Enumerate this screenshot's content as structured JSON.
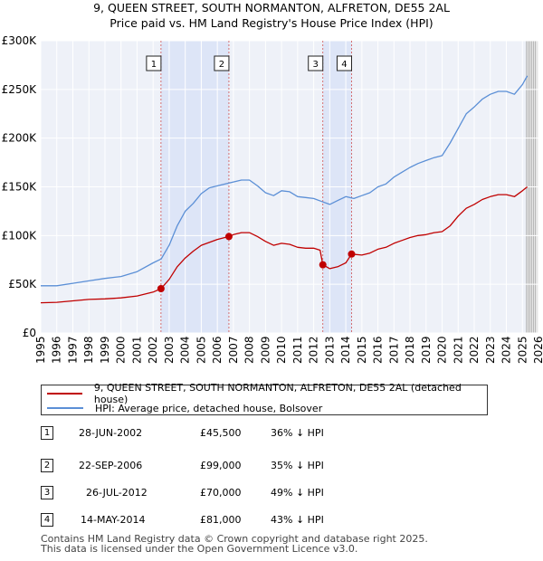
{
  "chart_data": {
    "type": "line",
    "title": "9, QUEEN STREET, SOUTH NORMANTON, ALFRETON, DE55 2AL",
    "subtitle": "Price paid vs. HM Land Registry's House Price Index (HPI)",
    "x_ticks": [
      "1995",
      "1996",
      "1997",
      "1998",
      "1999",
      "2000",
      "2001",
      "2002",
      "2003",
      "2004",
      "2005",
      "2006",
      "2007",
      "2008",
      "2009",
      "2010",
      "2011",
      "2012",
      "2013",
      "2014",
      "2015",
      "2016",
      "2017",
      "2018",
      "2019",
      "2020",
      "2021",
      "2022",
      "2023",
      "2024",
      "2025",
      "2026"
    ],
    "y_ticks": [
      "£0",
      "£50K",
      "£100K",
      "£150K",
      "£200K",
      "£250K",
      "£300K"
    ],
    "xlim": [
      1995,
      2026
    ],
    "ylim": [
      0,
      300000
    ],
    "series": [
      {
        "name": "HPI: Average price, detached house, Bolsover",
        "color": "#5b8fd6",
        "points": [
          [
            1995.0,
            48500
          ],
          [
            1996.0,
            48500
          ],
          [
            1997.0,
            51000
          ],
          [
            1998.0,
            53500
          ],
          [
            1999.0,
            56000
          ],
          [
            2000.0,
            58000
          ],
          [
            2001.0,
            63000
          ],
          [
            2002.0,
            72000
          ],
          [
            2002.5,
            76000
          ],
          [
            2003.0,
            90000
          ],
          [
            2003.5,
            110000
          ],
          [
            2004.0,
            125000
          ],
          [
            2004.5,
            133000
          ],
          [
            2005.0,
            143000
          ],
          [
            2005.5,
            149000
          ],
          [
            2006.0,
            151000
          ],
          [
            2006.5,
            153000
          ],
          [
            2007.0,
            155000
          ],
          [
            2007.5,
            157000
          ],
          [
            2008.0,
            157000
          ],
          [
            2008.5,
            151000
          ],
          [
            2009.0,
            144000
          ],
          [
            2009.5,
            141000
          ],
          [
            2010.0,
            146000
          ],
          [
            2010.5,
            145000
          ],
          [
            2011.0,
            140000
          ],
          [
            2011.5,
            139000
          ],
          [
            2012.0,
            138000
          ],
          [
            2012.5,
            135000
          ],
          [
            2013.0,
            132000
          ],
          [
            2013.5,
            136000
          ],
          [
            2014.0,
            140000
          ],
          [
            2014.5,
            138000
          ],
          [
            2015.0,
            141000
          ],
          [
            2015.5,
            144000
          ],
          [
            2016.0,
            150000
          ],
          [
            2016.5,
            153000
          ],
          [
            2017.0,
            160000
          ],
          [
            2017.5,
            165000
          ],
          [
            2018.0,
            170000
          ],
          [
            2018.5,
            174000
          ],
          [
            2019.0,
            177000
          ],
          [
            2019.5,
            180000
          ],
          [
            2020.0,
            182000
          ],
          [
            2020.5,
            195000
          ],
          [
            2021.0,
            210000
          ],
          [
            2021.5,
            225000
          ],
          [
            2022.0,
            232000
          ],
          [
            2022.5,
            240000
          ],
          [
            2023.0,
            245000
          ],
          [
            2023.5,
            248000
          ],
          [
            2024.0,
            248000
          ],
          [
            2024.5,
            245000
          ],
          [
            2025.0,
            255000
          ],
          [
            2025.3,
            264000
          ]
        ]
      },
      {
        "name": "9, QUEEN STREET, SOUTH NORMANTON, ALFRETON, DE55 2AL (detached house)",
        "color": "#c00000",
        "points": [
          [
            1995.0,
            31000
          ],
          [
            1996.0,
            31500
          ],
          [
            1997.0,
            33000
          ],
          [
            1998.0,
            34500
          ],
          [
            1999.0,
            35000
          ],
          [
            2000.0,
            36000
          ],
          [
            2001.0,
            38000
          ],
          [
            2002.0,
            42000
          ],
          [
            2002.49,
            45500
          ],
          [
            2003.0,
            55000
          ],
          [
            2003.5,
            68000
          ],
          [
            2004.0,
            77000
          ],
          [
            2004.5,
            84000
          ],
          [
            2005.0,
            90000
          ],
          [
            2005.5,
            93000
          ],
          [
            2006.0,
            96000
          ],
          [
            2006.72,
            99000
          ],
          [
            2007.0,
            101000
          ],
          [
            2007.5,
            103000
          ],
          [
            2008.0,
            103000
          ],
          [
            2008.5,
            99000
          ],
          [
            2009.0,
            94000
          ],
          [
            2009.5,
            90000
          ],
          [
            2010.0,
            92000
          ],
          [
            2010.5,
            91000
          ],
          [
            2011.0,
            88000
          ],
          [
            2011.5,
            87000
          ],
          [
            2012.0,
            87000
          ],
          [
            2012.4,
            85000
          ],
          [
            2012.57,
            70000
          ],
          [
            2013.0,
            66000
          ],
          [
            2013.5,
            68000
          ],
          [
            2014.0,
            72000
          ],
          [
            2014.36,
            81000
          ],
          [
            2015.0,
            80000
          ],
          [
            2015.5,
            82000
          ],
          [
            2016.0,
            86000
          ],
          [
            2016.5,
            88000
          ],
          [
            2017.0,
            92000
          ],
          [
            2017.5,
            95000
          ],
          [
            2018.0,
            98000
          ],
          [
            2018.5,
            100000
          ],
          [
            2019.0,
            101000
          ],
          [
            2019.5,
            103000
          ],
          [
            2020.0,
            104000
          ],
          [
            2020.5,
            110000
          ],
          [
            2021.0,
            120000
          ],
          [
            2021.5,
            128000
          ],
          [
            2022.0,
            132000
          ],
          [
            2022.5,
            137000
          ],
          [
            2023.0,
            140000
          ],
          [
            2023.5,
            142000
          ],
          [
            2024.0,
            142000
          ],
          [
            2024.5,
            140000
          ],
          [
            2025.0,
            146000
          ],
          [
            2025.3,
            150000
          ]
        ]
      }
    ],
    "sales": [
      {
        "label": "1",
        "x": 2002.49,
        "y": 45500
      },
      {
        "label": "2",
        "x": 2006.72,
        "y": 99000
      },
      {
        "label": "3",
        "x": 2012.57,
        "y": 70000
      },
      {
        "label": "4",
        "x": 2014.36,
        "y": 81000
      }
    ],
    "shaded_ranges": [
      [
        2002.49,
        2006.72
      ],
      [
        2012.57,
        2014.36
      ]
    ],
    "forecast_start": 2025.25,
    "grid": true,
    "legend": "below"
  },
  "legend": {
    "property_label": "9, QUEEN STREET, SOUTH NORMANTON, ALFRETON, DE55 2AL (detached house)",
    "hpi_label": "HPI: Average price, detached house, Bolsover",
    "property_color": "#c00000",
    "hpi_color": "#5b8fd6"
  },
  "sales_table": [
    {
      "num": "1",
      "date": "28-JUN-2002",
      "price": "£45,500",
      "hpi": "36% ↓ HPI"
    },
    {
      "num": "2",
      "date": "22-SEP-2006",
      "price": "£99,000",
      "hpi": "35% ↓ HPI"
    },
    {
      "num": "3",
      "date": "26-JUL-2012",
      "price": "£70,000",
      "hpi": "49% ↓ HPI"
    },
    {
      "num": "4",
      "date": "14-MAY-2014",
      "price": "£81,000",
      "hpi": "43% ↓ HPI"
    }
  ],
  "footer": {
    "line1": "Contains HM Land Registry data © Crown copyright and database right 2025.",
    "line2": "This data is licensed under the Open Government Licence v3.0."
  }
}
